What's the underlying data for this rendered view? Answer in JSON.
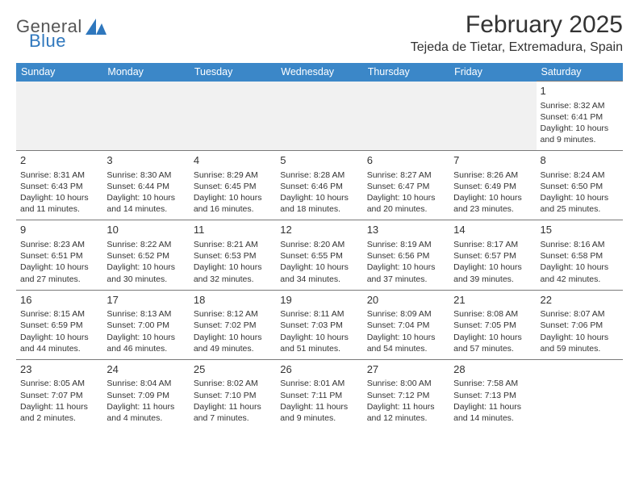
{
  "brand": {
    "word1": "General",
    "word2": "Blue"
  },
  "header": {
    "month_title": "February 2025",
    "location": "Tejeda de Tietar, Extremadura, Spain"
  },
  "colors": {
    "header_bg": "#3b87c8",
    "header_text": "#ffffff",
    "cell_border": "#7a7a7a",
    "brand_blue": "#2f77bd",
    "text": "#333333",
    "spacer_bg": "#f1f1f1",
    "page_bg": "#ffffff"
  },
  "weekdays": [
    "Sunday",
    "Monday",
    "Tuesday",
    "Wednesday",
    "Thursday",
    "Friday",
    "Saturday"
  ],
  "weeks": [
    [
      null,
      null,
      null,
      null,
      null,
      null,
      {
        "n": "1",
        "sunrise": "Sunrise: 8:32 AM",
        "sunset": "Sunset: 6:41 PM",
        "daylight": "Daylight: 10 hours and 9 minutes."
      }
    ],
    [
      {
        "n": "2",
        "sunrise": "Sunrise: 8:31 AM",
        "sunset": "Sunset: 6:43 PM",
        "daylight": "Daylight: 10 hours and 11 minutes."
      },
      {
        "n": "3",
        "sunrise": "Sunrise: 8:30 AM",
        "sunset": "Sunset: 6:44 PM",
        "daylight": "Daylight: 10 hours and 14 minutes."
      },
      {
        "n": "4",
        "sunrise": "Sunrise: 8:29 AM",
        "sunset": "Sunset: 6:45 PM",
        "daylight": "Daylight: 10 hours and 16 minutes."
      },
      {
        "n": "5",
        "sunrise": "Sunrise: 8:28 AM",
        "sunset": "Sunset: 6:46 PM",
        "daylight": "Daylight: 10 hours and 18 minutes."
      },
      {
        "n": "6",
        "sunrise": "Sunrise: 8:27 AM",
        "sunset": "Sunset: 6:47 PM",
        "daylight": "Daylight: 10 hours and 20 minutes."
      },
      {
        "n": "7",
        "sunrise": "Sunrise: 8:26 AM",
        "sunset": "Sunset: 6:49 PM",
        "daylight": "Daylight: 10 hours and 23 minutes."
      },
      {
        "n": "8",
        "sunrise": "Sunrise: 8:24 AM",
        "sunset": "Sunset: 6:50 PM",
        "daylight": "Daylight: 10 hours and 25 minutes."
      }
    ],
    [
      {
        "n": "9",
        "sunrise": "Sunrise: 8:23 AM",
        "sunset": "Sunset: 6:51 PM",
        "daylight": "Daylight: 10 hours and 27 minutes."
      },
      {
        "n": "10",
        "sunrise": "Sunrise: 8:22 AM",
        "sunset": "Sunset: 6:52 PM",
        "daylight": "Daylight: 10 hours and 30 minutes."
      },
      {
        "n": "11",
        "sunrise": "Sunrise: 8:21 AM",
        "sunset": "Sunset: 6:53 PM",
        "daylight": "Daylight: 10 hours and 32 minutes."
      },
      {
        "n": "12",
        "sunrise": "Sunrise: 8:20 AM",
        "sunset": "Sunset: 6:55 PM",
        "daylight": "Daylight: 10 hours and 34 minutes."
      },
      {
        "n": "13",
        "sunrise": "Sunrise: 8:19 AM",
        "sunset": "Sunset: 6:56 PM",
        "daylight": "Daylight: 10 hours and 37 minutes."
      },
      {
        "n": "14",
        "sunrise": "Sunrise: 8:17 AM",
        "sunset": "Sunset: 6:57 PM",
        "daylight": "Daylight: 10 hours and 39 minutes."
      },
      {
        "n": "15",
        "sunrise": "Sunrise: 8:16 AM",
        "sunset": "Sunset: 6:58 PM",
        "daylight": "Daylight: 10 hours and 42 minutes."
      }
    ],
    [
      {
        "n": "16",
        "sunrise": "Sunrise: 8:15 AM",
        "sunset": "Sunset: 6:59 PM",
        "daylight": "Daylight: 10 hours and 44 minutes."
      },
      {
        "n": "17",
        "sunrise": "Sunrise: 8:13 AM",
        "sunset": "Sunset: 7:00 PM",
        "daylight": "Daylight: 10 hours and 46 minutes."
      },
      {
        "n": "18",
        "sunrise": "Sunrise: 8:12 AM",
        "sunset": "Sunset: 7:02 PM",
        "daylight": "Daylight: 10 hours and 49 minutes."
      },
      {
        "n": "19",
        "sunrise": "Sunrise: 8:11 AM",
        "sunset": "Sunset: 7:03 PM",
        "daylight": "Daylight: 10 hours and 51 minutes."
      },
      {
        "n": "20",
        "sunrise": "Sunrise: 8:09 AM",
        "sunset": "Sunset: 7:04 PM",
        "daylight": "Daylight: 10 hours and 54 minutes."
      },
      {
        "n": "21",
        "sunrise": "Sunrise: 8:08 AM",
        "sunset": "Sunset: 7:05 PM",
        "daylight": "Daylight: 10 hours and 57 minutes."
      },
      {
        "n": "22",
        "sunrise": "Sunrise: 8:07 AM",
        "sunset": "Sunset: 7:06 PM",
        "daylight": "Daylight: 10 hours and 59 minutes."
      }
    ],
    [
      {
        "n": "23",
        "sunrise": "Sunrise: 8:05 AM",
        "sunset": "Sunset: 7:07 PM",
        "daylight": "Daylight: 11 hours and 2 minutes."
      },
      {
        "n": "24",
        "sunrise": "Sunrise: 8:04 AM",
        "sunset": "Sunset: 7:09 PM",
        "daylight": "Daylight: 11 hours and 4 minutes."
      },
      {
        "n": "25",
        "sunrise": "Sunrise: 8:02 AM",
        "sunset": "Sunset: 7:10 PM",
        "daylight": "Daylight: 11 hours and 7 minutes."
      },
      {
        "n": "26",
        "sunrise": "Sunrise: 8:01 AM",
        "sunset": "Sunset: 7:11 PM",
        "daylight": "Daylight: 11 hours and 9 minutes."
      },
      {
        "n": "27",
        "sunrise": "Sunrise: 8:00 AM",
        "sunset": "Sunset: 7:12 PM",
        "daylight": "Daylight: 11 hours and 12 minutes."
      },
      {
        "n": "28",
        "sunrise": "Sunrise: 7:58 AM",
        "sunset": "Sunset: 7:13 PM",
        "daylight": "Daylight: 11 hours and 14 minutes."
      },
      null
    ]
  ]
}
